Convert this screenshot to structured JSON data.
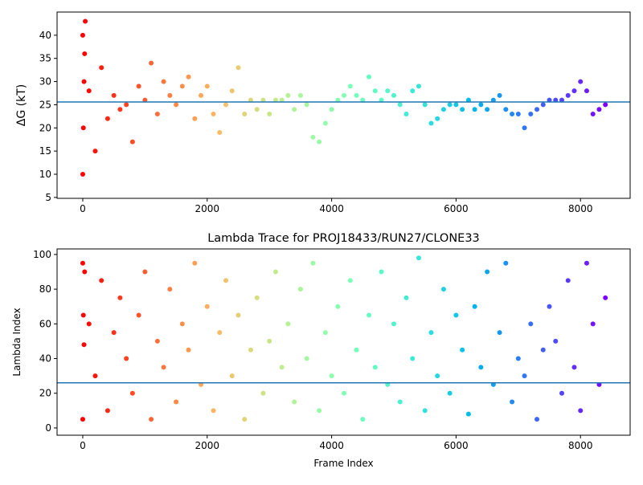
{
  "chart_data": [
    {
      "type": "scatter",
      "ylabel": "ΔG (kT)",
      "colormap": "rainbow",
      "x": [
        0,
        10,
        20,
        30,
        40,
        0,
        100,
        200,
        300,
        400,
        500,
        600,
        700,
        800,
        900,
        1000,
        1100,
        1200,
        1300,
        1400,
        1500,
        1600,
        1700,
        1800,
        1900,
        2000,
        2100,
        2200,
        2300,
        2400,
        2500,
        2600,
        2700,
        2800,
        2900,
        3000,
        3100,
        3200,
        3300,
        3400,
        3500,
        3600,
        3700,
        3800,
        3900,
        4000,
        4100,
        4200,
        4300,
        4400,
        4500,
        4600,
        4700,
        4800,
        4900,
        5000,
        5100,
        5200,
        5300,
        5400,
        5500,
        5600,
        5700,
        5800,
        5900,
        6000,
        6100,
        6200,
        6300,
        6400,
        6500,
        6600,
        6700,
        6800,
        6900,
        7000,
        7100,
        7200,
        7300,
        7400,
        7500,
        7600,
        7700,
        7800,
        7900,
        8000,
        8100,
        8200,
        8300,
        8400
      ],
      "values": [
        10,
        20,
        30,
        36,
        43,
        40,
        28,
        15,
        33,
        22,
        27,
        24,
        25,
        17,
        29,
        26,
        34,
        23,
        30,
        27,
        25,
        29,
        31,
        22,
        27,
        29,
        23,
        19,
        25,
        28,
        33,
        23,
        26,
        24,
        26,
        23,
        26,
        26,
        27,
        24,
        27,
        25,
        18,
        17,
        21,
        24,
        26,
        27,
        29,
        27,
        26,
        31,
        28,
        26,
        28,
        27,
        25,
        23,
        28,
        29,
        25,
        21,
        22,
        24,
        25,
        25,
        24,
        26,
        24,
        25,
        24,
        26,
        27,
        24,
        23,
        23,
        20,
        23,
        24,
        25,
        26,
        26,
        26,
        27,
        28,
        30,
        28,
        23,
        24,
        25
      ],
      "hline": 25.6,
      "xlim": [
        -413,
        8798
      ],
      "ylim": [
        4.8,
        45.0
      ],
      "xticks": [
        0,
        2000,
        4000,
        6000,
        8000
      ],
      "yticks": [
        5,
        10,
        15,
        20,
        25,
        30,
        35,
        40
      ]
    },
    {
      "type": "scatter",
      "title": "Lambda Trace for PROJ18433/RUN27/CLONE33",
      "xlabel": "Frame Index",
      "ylabel": "Lambda Index",
      "colormap": "rainbow",
      "x": [
        0,
        10,
        20,
        30,
        0,
        100,
        200,
        300,
        400,
        500,
        600,
        700,
        800,
        900,
        1000,
        1100,
        1200,
        1300,
        1400,
        1500,
        1600,
        1700,
        1800,
        1900,
        2000,
        2100,
        2200,
        2300,
        2400,
        2500,
        2600,
        2700,
        2800,
        2900,
        3000,
        3100,
        3200,
        3300,
        3400,
        3500,
        3600,
        3700,
        3800,
        3900,
        4000,
        4100,
        4200,
        4300,
        4400,
        4500,
        4600,
        4700,
        4800,
        4900,
        5000,
        5100,
        5200,
        5300,
        5400,
        5500,
        5600,
        5700,
        5800,
        5900,
        6000,
        6100,
        6200,
        6300,
        6400,
        6500,
        6600,
        6700,
        6800,
        6900,
        7000,
        7100,
        7200,
        7300,
        7400,
        7500,
        7600,
        7700,
        7800,
        7900,
        8000,
        8100,
        8200,
        8300,
        8400
      ],
      "values": [
        5,
        65,
        48,
        90,
        95,
        60,
        30,
        85,
        10,
        55,
        75,
        40,
        20,
        65,
        90,
        5,
        50,
        35,
        80,
        15,
        60,
        45,
        95,
        25,
        70,
        10,
        55,
        85,
        30,
        65,
        5,
        45,
        75,
        20,
        50,
        90,
        35,
        60,
        15,
        80,
        40,
        95,
        10,
        55,
        30,
        70,
        20,
        85,
        45,
        5,
        65,
        35,
        90,
        25,
        60,
        15,
        75,
        40,
        98,
        10,
        55,
        30,
        80,
        20,
        65,
        45,
        8,
        70,
        35,
        90,
        25,
        55,
        95,
        15,
        40,
        30,
        60,
        5,
        45,
        70,
        50,
        20,
        85,
        35,
        10,
        95,
        60,
        25,
        75
      ],
      "hline": 26,
      "xlim": [
        -413,
        8798
      ],
      "ylim": [
        -4.2,
        103.2
      ],
      "xticks": [
        0,
        2000,
        4000,
        6000,
        8000
      ],
      "yticks": [
        0,
        20,
        40,
        60,
        80,
        100
      ]
    }
  ]
}
